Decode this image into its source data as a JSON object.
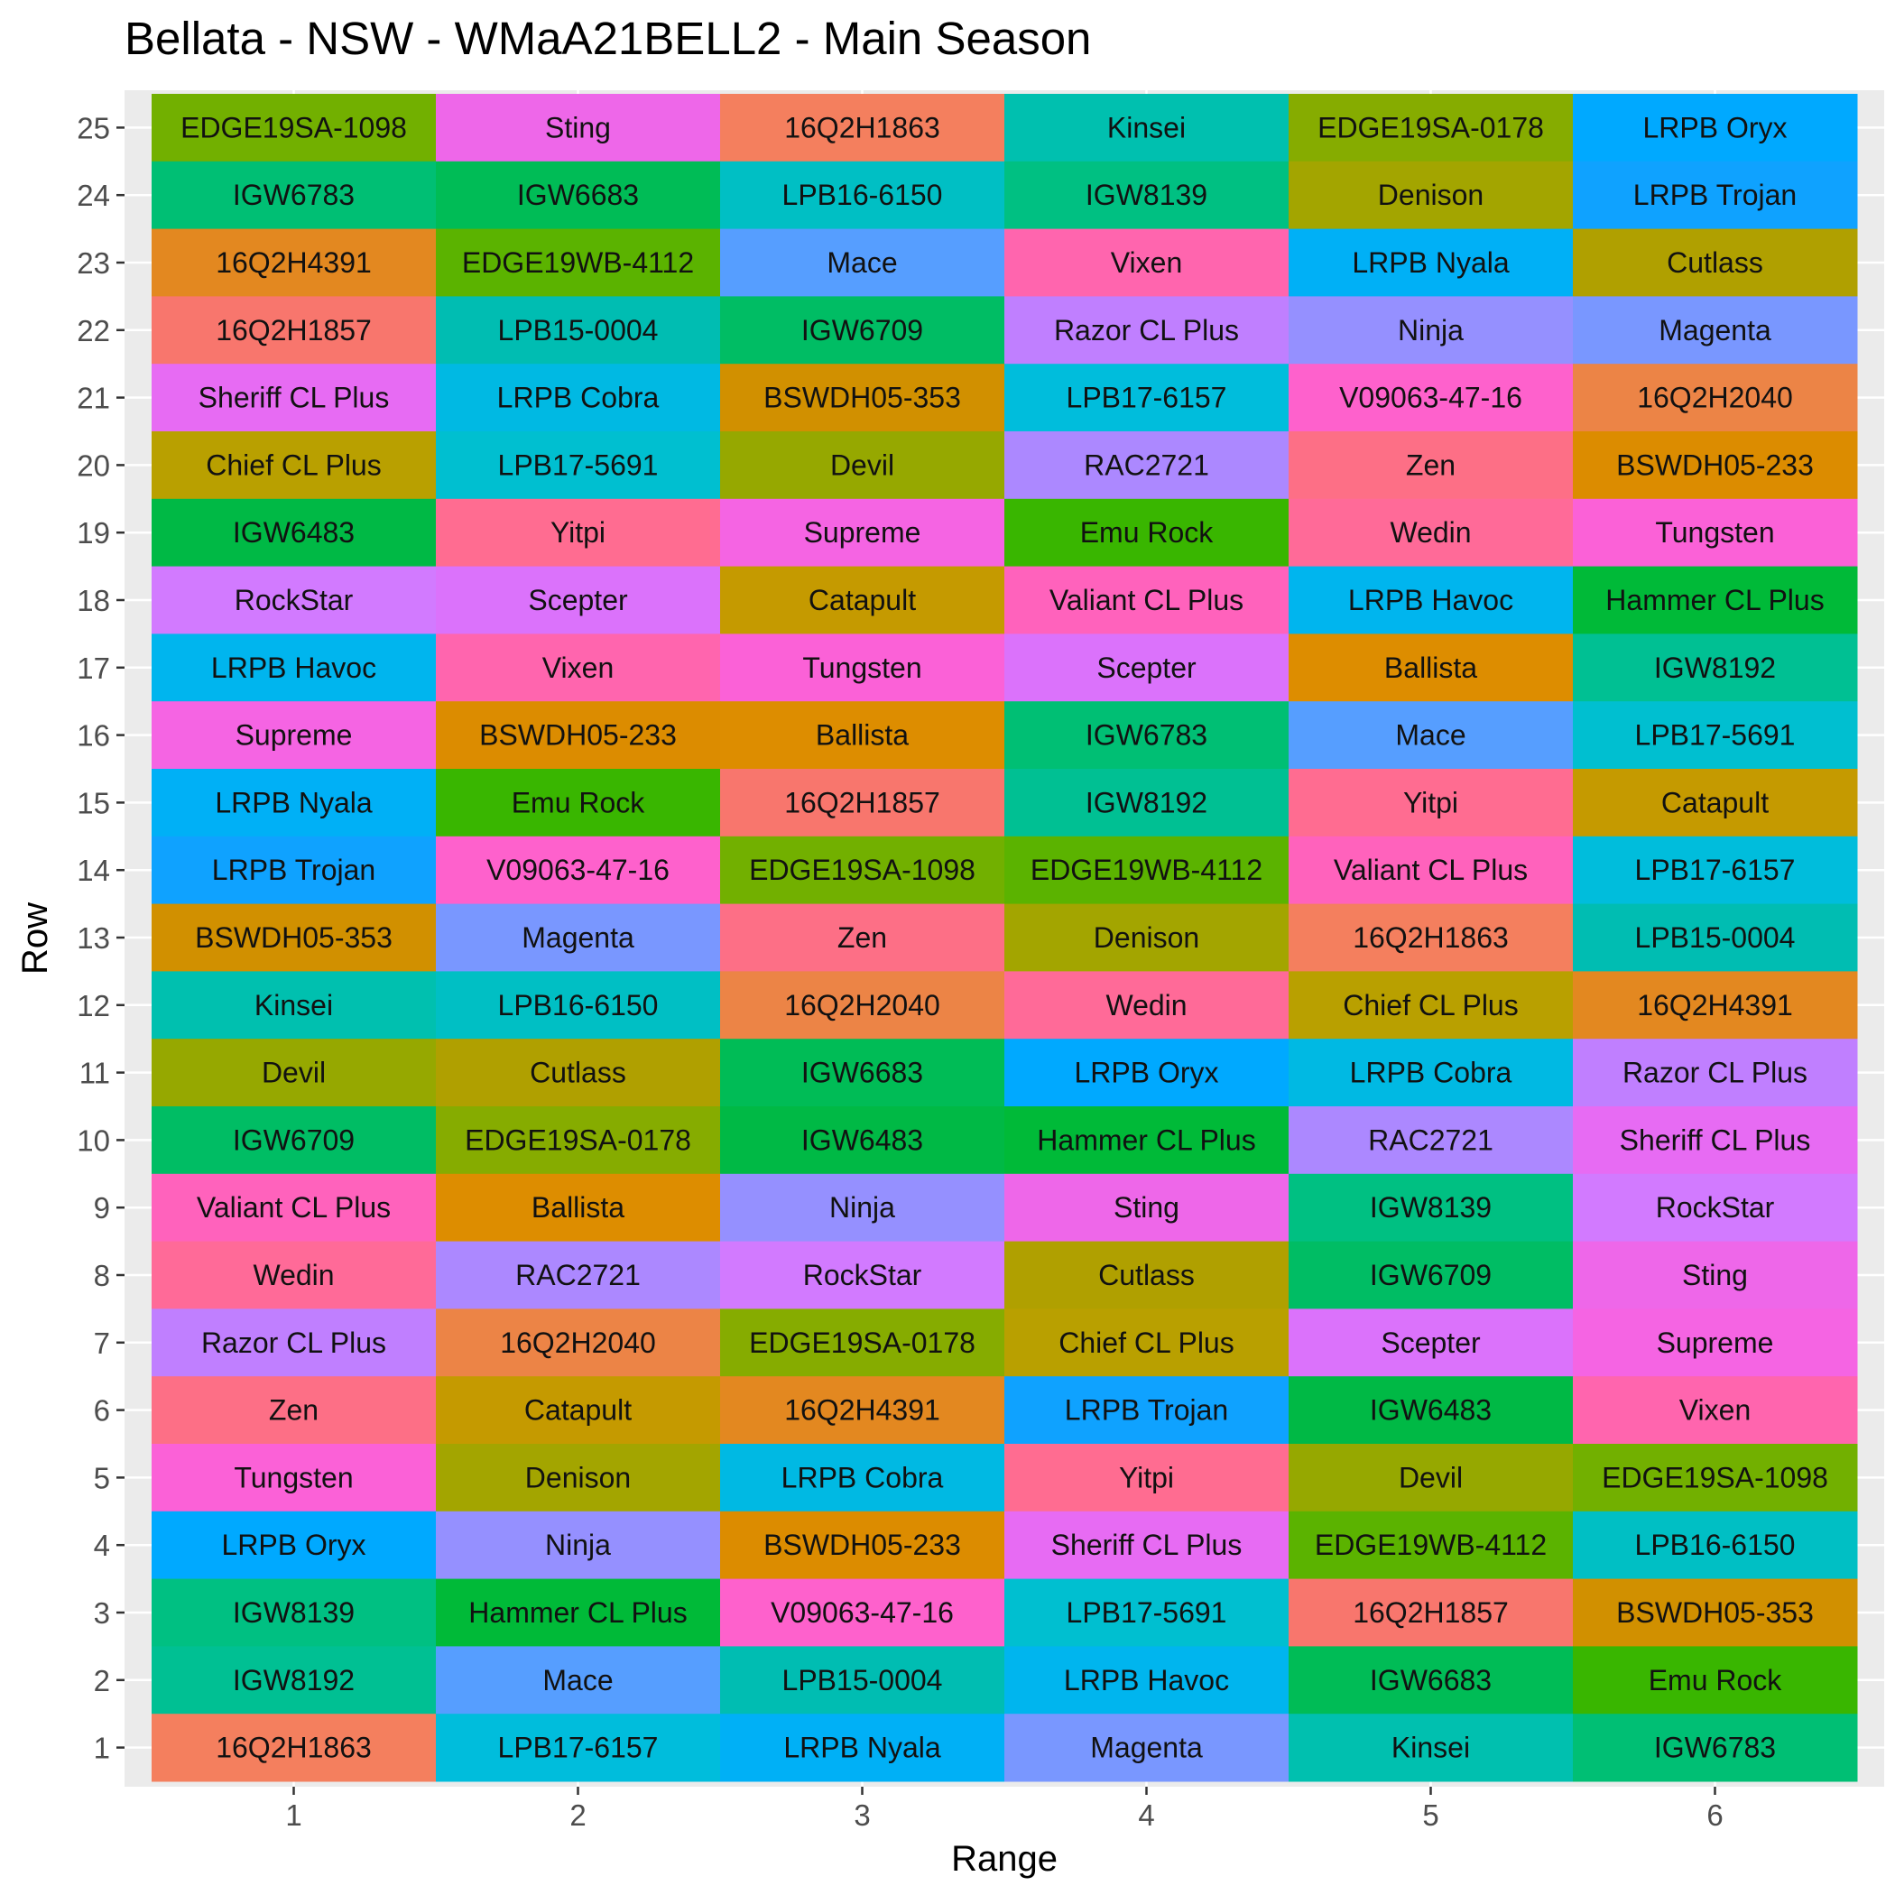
{
  "chart_data": {
    "type": "heatmap",
    "title": "Bellata - NSW - WMaA21BELL2 - Main Season",
    "xlabel": "Range",
    "ylabel": "Row",
    "x": [
      1,
      2,
      3,
      4,
      5,
      6
    ],
    "y": [
      1,
      2,
      3,
      4,
      5,
      6,
      7,
      8,
      9,
      10,
      11,
      12,
      13,
      14,
      15,
      16,
      17,
      18,
      19,
      20,
      21,
      22,
      23,
      24,
      25
    ],
    "grid": true,
    "legend": "none",
    "rows": [
      {
        "row": 25,
        "cells": [
          "EDGE19SA-1098",
          "Sting",
          "16Q2H1863",
          "Kinsei",
          "EDGE19SA-0178",
          "LRPB Oryx"
        ]
      },
      {
        "row": 24,
        "cells": [
          "IGW6783",
          "IGW6683",
          "LPB16-6150",
          "IGW8139",
          "Denison",
          "LRPB Trojan"
        ]
      },
      {
        "row": 23,
        "cells": [
          "16Q2H4391",
          "EDGE19WB-4112",
          "Mace",
          "Vixen",
          "LRPB Nyala",
          "Cutlass"
        ]
      },
      {
        "row": 22,
        "cells": [
          "16Q2H1857",
          "LPB15-0004",
          "IGW6709",
          "Razor CL Plus",
          "Ninja",
          "Magenta"
        ]
      },
      {
        "row": 21,
        "cells": [
          "Sheriff CL Plus",
          "LRPB Cobra",
          "BSWDH05-353",
          "LPB17-6157",
          "V09063-47-16",
          "16Q2H2040"
        ]
      },
      {
        "row": 20,
        "cells": [
          "Chief CL Plus",
          "LPB17-5691",
          "Devil",
          "RAC2721",
          "Zen",
          "BSWDH05-233"
        ]
      },
      {
        "row": 19,
        "cells": [
          "IGW6483",
          "Yitpi",
          "Supreme",
          "Emu Rock",
          "Wedin",
          "Tungsten"
        ]
      },
      {
        "row": 18,
        "cells": [
          "RockStar",
          "Scepter",
          "Catapult",
          "Valiant CL Plus",
          "LRPB Havoc",
          "Hammer CL Plus"
        ]
      },
      {
        "row": 17,
        "cells": [
          "LRPB Havoc",
          "Vixen",
          "Tungsten",
          "Scepter",
          "Ballista",
          "IGW8192"
        ]
      },
      {
        "row": 16,
        "cells": [
          "Supreme",
          "BSWDH05-233",
          "Ballista",
          "IGW6783",
          "Mace",
          "LPB17-5691"
        ]
      },
      {
        "row": 15,
        "cells": [
          "LRPB Nyala",
          "Emu Rock",
          "16Q2H1857",
          "IGW8192",
          "Yitpi",
          "Catapult"
        ]
      },
      {
        "row": 14,
        "cells": [
          "LRPB Trojan",
          "V09063-47-16",
          "EDGE19SA-1098",
          "EDGE19WB-4112",
          "Valiant CL Plus",
          "LPB17-6157"
        ]
      },
      {
        "row": 13,
        "cells": [
          "BSWDH05-353",
          "Magenta",
          "Zen",
          "Denison",
          "16Q2H1863",
          "LPB15-0004"
        ]
      },
      {
        "row": 12,
        "cells": [
          "Kinsei",
          "LPB16-6150",
          "16Q2H2040",
          "Wedin",
          "Chief CL Plus",
          "16Q2H4391"
        ]
      },
      {
        "row": 11,
        "cells": [
          "Devil",
          "Cutlass",
          "IGW6683",
          "LRPB Oryx",
          "LRPB Cobra",
          "Razor CL Plus"
        ]
      },
      {
        "row": 10,
        "cells": [
          "IGW6709",
          "EDGE19SA-0178",
          "IGW6483",
          "Hammer CL Plus",
          "RAC2721",
          "Sheriff CL Plus"
        ]
      },
      {
        "row": 9,
        "cells": [
          "Valiant CL Plus",
          "Ballista",
          "Ninja",
          "Sting",
          "IGW8139",
          "RockStar"
        ]
      },
      {
        "row": 8,
        "cells": [
          "Wedin",
          "RAC2721",
          "RockStar",
          "Cutlass",
          "IGW6709",
          "Sting"
        ]
      },
      {
        "row": 7,
        "cells": [
          "Razor CL Plus",
          "16Q2H2040",
          "EDGE19SA-0178",
          "Chief CL Plus",
          "Scepter",
          "Supreme"
        ]
      },
      {
        "row": 6,
        "cells": [
          "Zen",
          "Catapult",
          "16Q2H4391",
          "LRPB Trojan",
          "IGW6483",
          "Vixen"
        ]
      },
      {
        "row": 5,
        "cells": [
          "Tungsten",
          "Denison",
          "LRPB Cobra",
          "Yitpi",
          "Devil",
          "EDGE19SA-1098"
        ]
      },
      {
        "row": 4,
        "cells": [
          "LRPB Oryx",
          "Ninja",
          "BSWDH05-233",
          "Sheriff CL Plus",
          "EDGE19WB-4112",
          "LPB16-6150"
        ]
      },
      {
        "row": 3,
        "cells": [
          "IGW8139",
          "Hammer CL Plus",
          "V09063-47-16",
          "LPB17-5691",
          "16Q2H1857",
          "BSWDH05-353"
        ]
      },
      {
        "row": 2,
        "cells": [
          "IGW8192",
          "Mace",
          "LPB15-0004",
          "LRPB Havoc",
          "IGW6683",
          "Emu Rock"
        ]
      },
      {
        "row": 1,
        "cells": [
          "16Q2H1863",
          "LPB17-6157",
          "LRPB Nyala",
          "Magenta",
          "Kinsei",
          "IGW6783"
        ]
      }
    ],
    "variety_colors": {
      "16Q2H1857": "#F8766D",
      "16Q2H1863": "#F47F5E",
      "16Q2H2040": "#EC8446",
      "16Q2H4391": "#E38820",
      "BSWDH05-233": "#DC8C00",
      "BSWDH05-353": "#D19000",
      "Ballista": "#DD8D00",
      "Catapult": "#C59A00",
      "Chief CL Plus": "#B9A000",
      "Cutlass": "#B0A000",
      "Denison": "#A3A500",
      "Devil": "#96A800",
      "EDGE19SA-0178": "#86AC00",
      "EDGE19SA-1098": "#72B000",
      "EDGE19WB-4112": "#5BB300",
      "Emu Rock": "#39B600",
      "Hammer CL Plus": "#00BA38",
      "IGW6483": "#00B945",
      "IGW6683": "#00BC56",
      "IGW6709": "#00BD64",
      "IGW6783": "#00BF74",
      "IGW8139": "#00C082",
      "IGW8192": "#00C093",
      "Kinsei": "#00C0AF",
      "LPB15-0004": "#00BDB2",
      "LPB16-6150": "#00BFC4",
      "LPB17-5691": "#00BFD0",
      "LPB17-6157": "#00BDDC",
      "LRPB Cobra": "#00B9E3",
      "LRPB Havoc": "#00B5EE",
      "LRPB Nyala": "#00B0F6",
      "LRPB Oryx": "#00A9FF",
      "LRPB Trojan": "#0FA2FF",
      "Mace": "#569EFF",
      "Magenta": "#7997FF",
      "Ninja": "#9590FF",
      "RAC2721": "#AC88FF",
      "Razor CL Plus": "#C07FFF",
      "RockStar": "#D27AFF",
      "Scepter": "#DB72FB",
      "Sheriff CL Plus": "#E76BF3",
      "Sting": "#EE67E9",
      "Supreme": "#F564E3",
      "Tungsten": "#FB61D7",
      "V09063-47-16": "#FE61CC",
      "Valiant CL Plus": "#FF62BC",
      "Vixen": "#FF65AE",
      "Wedin": "#FF6A98",
      "Yitpi": "#FF6C91",
      "Zen": "#FD6F86"
    }
  }
}
